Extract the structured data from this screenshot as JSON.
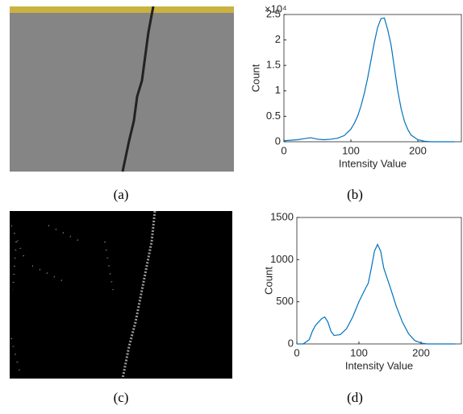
{
  "captions": [
    "(a)",
    "(b)",
    "(c)",
    "(d)"
  ],
  "chart_data": [
    {
      "type": "line",
      "xlabel": "Intensity Value",
      "ylabel": "Count",
      "yscale_label": "×10⁴",
      "x": [
        0,
        10,
        20,
        30,
        40,
        50,
        60,
        70,
        80,
        90,
        100,
        105,
        110,
        115,
        120,
        125,
        130,
        135,
        140,
        145,
        150,
        155,
        160,
        165,
        170,
        175,
        180,
        185,
        190,
        200,
        210,
        220,
        240,
        255
      ],
      "series": [
        {
          "color": "#0072bd",
          "values": [
            0.02,
            0.03,
            0.04,
            0.06,
            0.08,
            0.05,
            0.04,
            0.05,
            0.07,
            0.12,
            0.25,
            0.36,
            0.5,
            0.7,
            0.95,
            1.25,
            1.6,
            1.95,
            2.25,
            2.42,
            2.43,
            2.2,
            1.9,
            1.45,
            1.0,
            0.65,
            0.4,
            0.24,
            0.13,
            0.04,
            0.01,
            0,
            0,
            0
          ]
        }
      ],
      "xlim": [
        0,
        265
      ],
      "xticks": [
        0,
        100,
        200
      ],
      "ylim": [
        0,
        2.5
      ],
      "yticks": [
        0,
        0.5,
        1,
        1.5,
        2,
        2.5
      ]
    },
    {
      "type": "line",
      "xlabel": "Intensity Value",
      "ylabel": "Count",
      "x": [
        0,
        10,
        20,
        25,
        30,
        35,
        40,
        45,
        50,
        55,
        60,
        70,
        80,
        90,
        100,
        110,
        115,
        120,
        125,
        130,
        135,
        140,
        150,
        160,
        170,
        180,
        190,
        200,
        210,
        255
      ],
      "series": [
        {
          "color": "#0072bd",
          "values": [
            0,
            0,
            50,
            150,
            220,
            260,
            300,
            320,
            260,
            150,
            100,
            110,
            180,
            320,
            500,
            650,
            720,
            900,
            1100,
            1180,
            1100,
            900,
            680,
            450,
            260,
            120,
            40,
            10,
            0,
            0
          ]
        }
      ],
      "xlim": [
        0,
        265
      ],
      "xticks": [
        0,
        100,
        200
      ],
      "ylim": [
        0,
        1500
      ],
      "yticks": [
        0,
        500,
        1000,
        1500
      ]
    }
  ]
}
